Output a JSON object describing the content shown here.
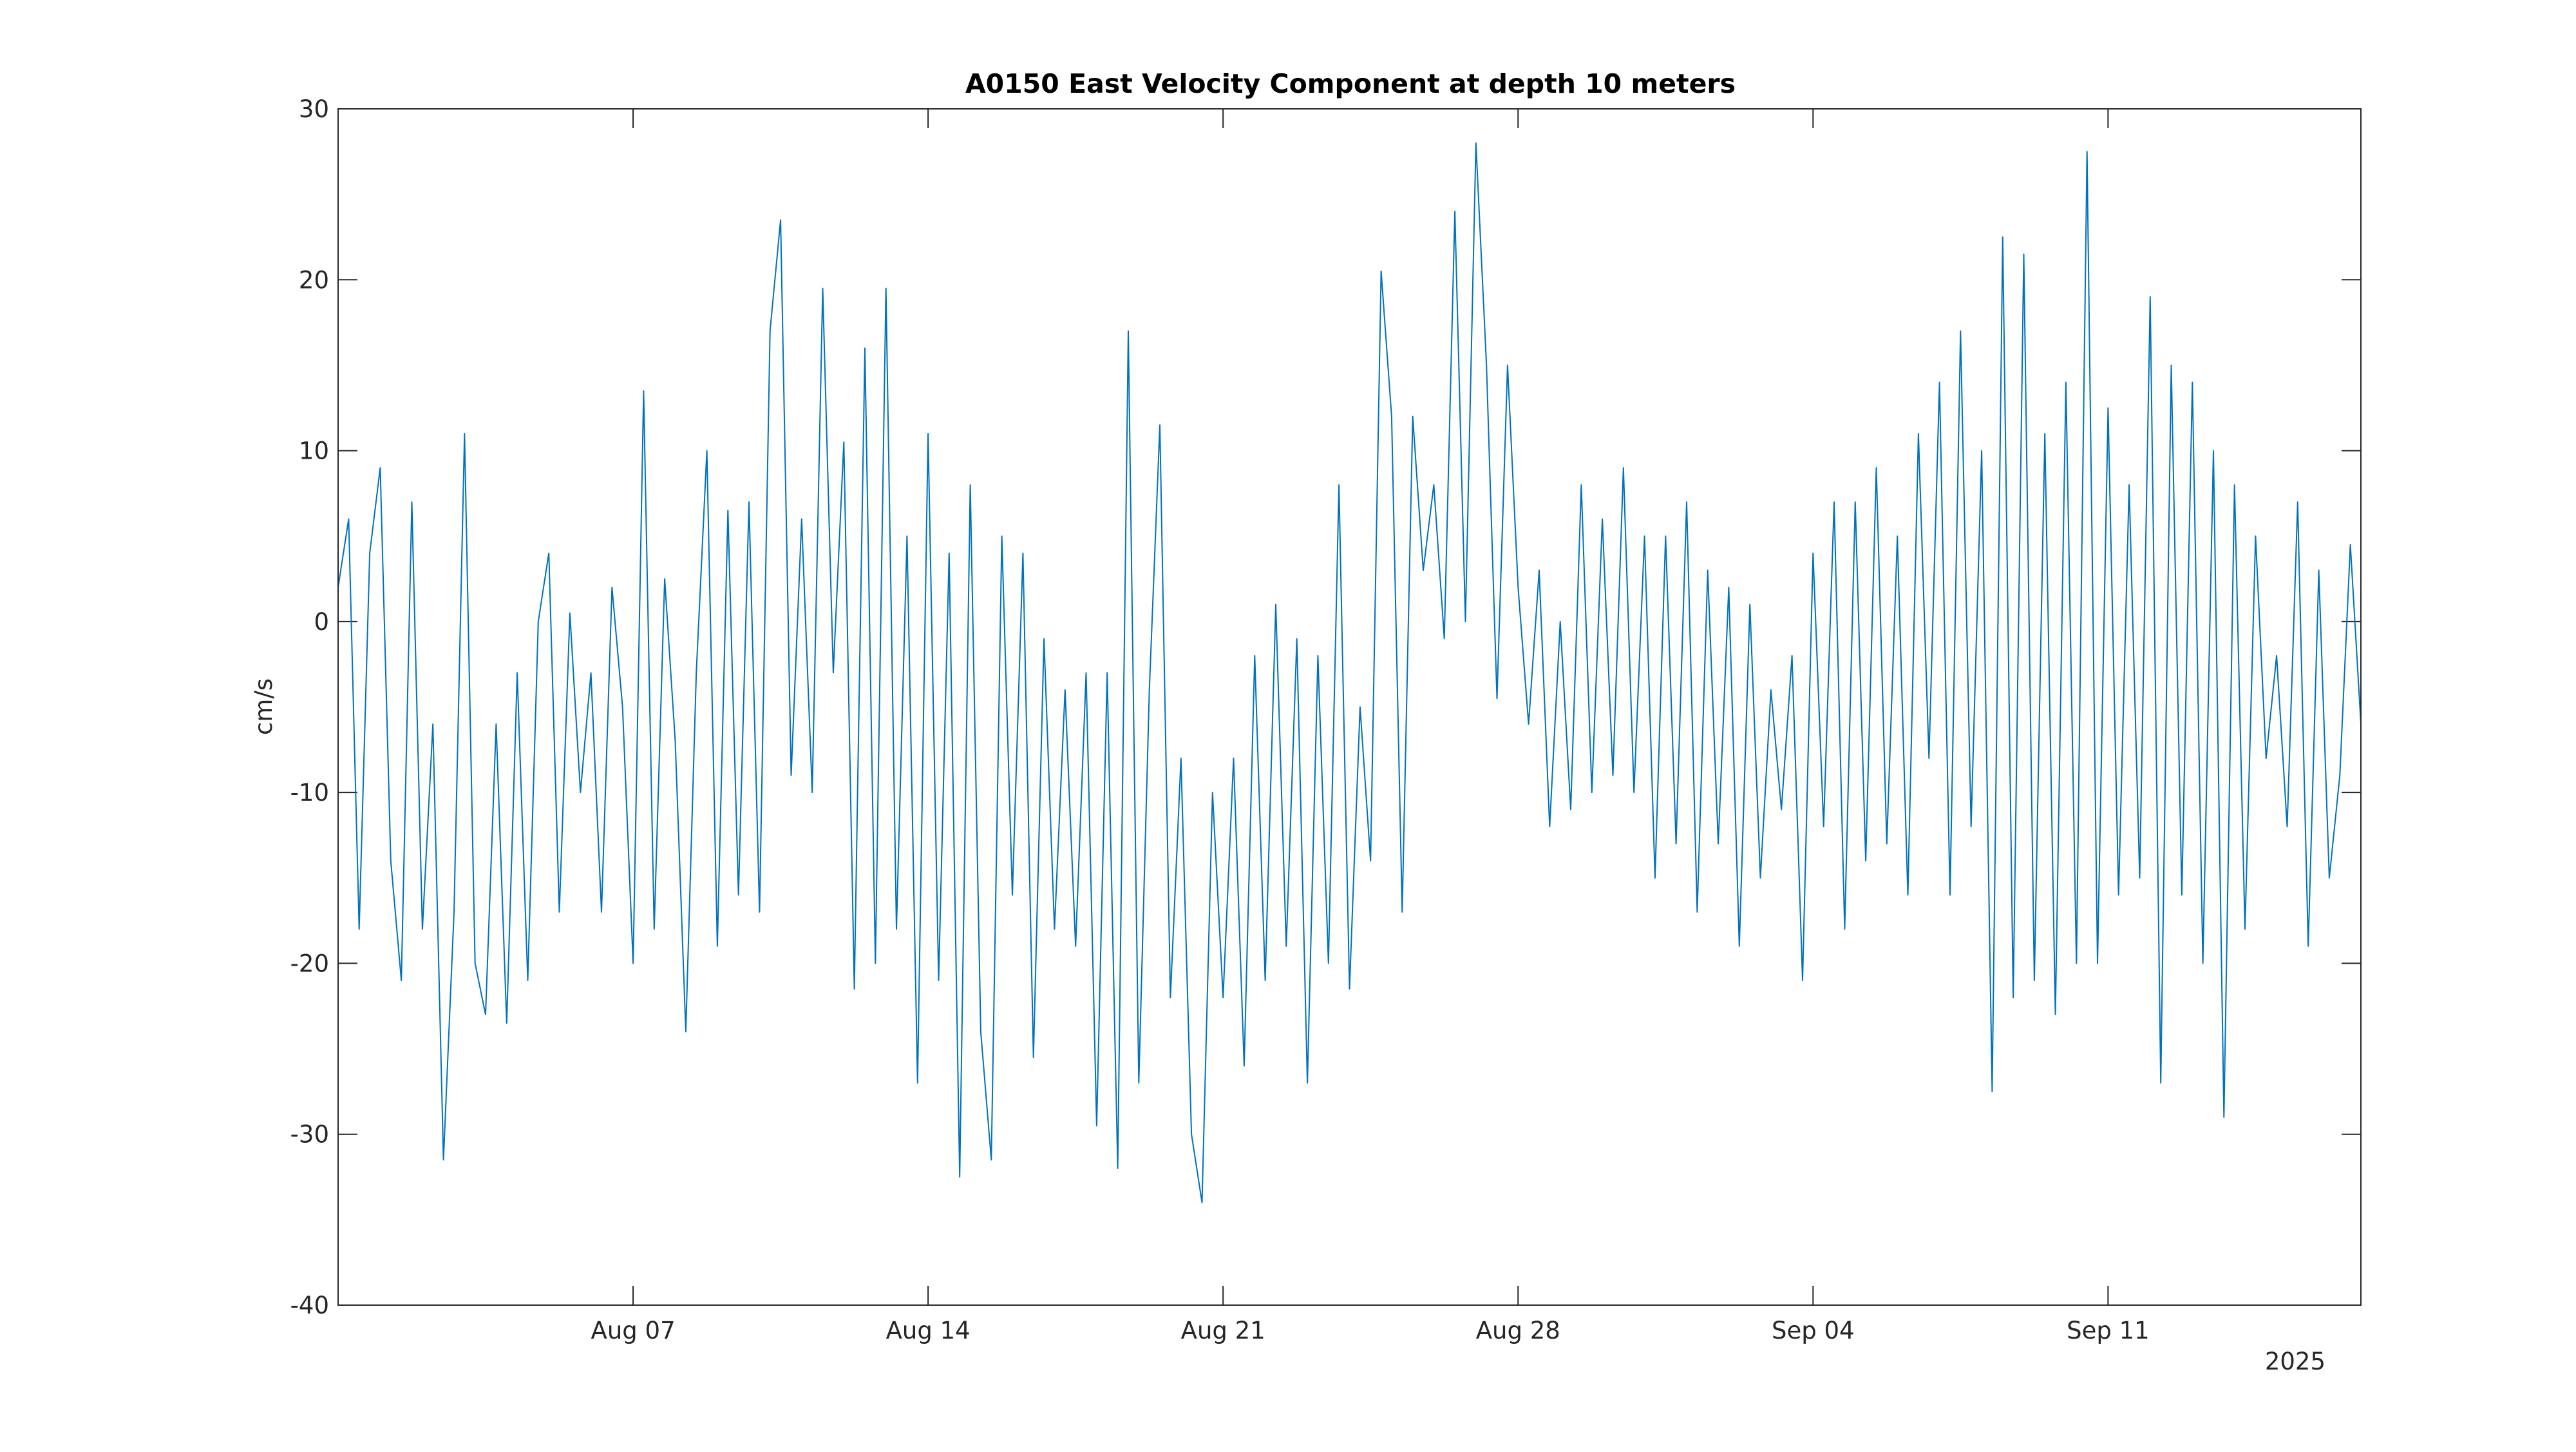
{
  "chart_data": {
    "type": "line",
    "title": "A0150 East Velocity Component at depth 10 meters",
    "xlabel": "",
    "ylabel": "cm/s",
    "x_year_label": "2025",
    "x_range": [
      "2025-07-31",
      "2025-09-17"
    ],
    "x_ticks": [
      {
        "date": "2025-08-07",
        "label": "Aug 07"
      },
      {
        "date": "2025-08-14",
        "label": "Aug 14"
      },
      {
        "date": "2025-08-21",
        "label": "Aug 21"
      },
      {
        "date": "2025-08-28",
        "label": "Aug 28"
      },
      {
        "date": "2025-09-04",
        "label": "Sep 04"
      },
      {
        "date": "2025-09-11",
        "label": "Sep 11"
      }
    ],
    "ylim": [
      -40,
      30
    ],
    "y_ticks": [
      30,
      20,
      10,
      0,
      -10,
      -20,
      -30,
      -40
    ],
    "grid": false,
    "line_color": "#0072BD",
    "series": [
      {
        "values": [
          [
            "2025-07-31T00:00",
            2
          ],
          [
            "2025-07-31T06:00",
            6
          ],
          [
            "2025-07-31T12:00",
            -18
          ],
          [
            "2025-07-31T18:00",
            4
          ],
          [
            "2025-08-01T00:00",
            9
          ],
          [
            "2025-08-01T06:00",
            -14
          ],
          [
            "2025-08-01T12:00",
            -21
          ],
          [
            "2025-08-01T18:00",
            7
          ],
          [
            "2025-08-02T00:00",
            -18
          ],
          [
            "2025-08-02T06:00",
            -6
          ],
          [
            "2025-08-02T12:00",
            -31.5
          ],
          [
            "2025-08-02T18:00",
            -17
          ],
          [
            "2025-08-03T00:00",
            11
          ],
          [
            "2025-08-03T06:00",
            -20
          ],
          [
            "2025-08-03T12:00",
            -23
          ],
          [
            "2025-08-03T18:00",
            -6
          ],
          [
            "2025-08-04T00:00",
            -23.5
          ],
          [
            "2025-08-04T06:00",
            -3
          ],
          [
            "2025-08-04T12:00",
            -21
          ],
          [
            "2025-08-04T18:00",
            0
          ],
          [
            "2025-08-05T00:00",
            4
          ],
          [
            "2025-08-05T06:00",
            -17
          ],
          [
            "2025-08-05T12:00",
            0.5
          ],
          [
            "2025-08-05T18:00",
            -10
          ],
          [
            "2025-08-06T00:00",
            -3
          ],
          [
            "2025-08-06T06:00",
            -17
          ],
          [
            "2025-08-06T12:00",
            2
          ],
          [
            "2025-08-06T18:00",
            -5
          ],
          [
            "2025-08-07T00:00",
            -20
          ],
          [
            "2025-08-07T06:00",
            13.5
          ],
          [
            "2025-08-07T12:00",
            -18
          ],
          [
            "2025-08-07T18:00",
            2.5
          ],
          [
            "2025-08-08T00:00",
            -7
          ],
          [
            "2025-08-08T06:00",
            -24
          ],
          [
            "2025-08-08T12:00",
            -3
          ],
          [
            "2025-08-08T18:00",
            10
          ],
          [
            "2025-08-09T00:00",
            -19
          ],
          [
            "2025-08-09T06:00",
            6.5
          ],
          [
            "2025-08-09T12:00",
            -16
          ],
          [
            "2025-08-09T18:00",
            7
          ],
          [
            "2025-08-10T00:00",
            -17
          ],
          [
            "2025-08-10T06:00",
            17
          ],
          [
            "2025-08-10T12:00",
            23.5
          ],
          [
            "2025-08-10T18:00",
            -9
          ],
          [
            "2025-08-11T00:00",
            6
          ],
          [
            "2025-08-11T06:00",
            -10
          ],
          [
            "2025-08-11T12:00",
            19.5
          ],
          [
            "2025-08-11T18:00",
            -3
          ],
          [
            "2025-08-12T00:00",
            10.5
          ],
          [
            "2025-08-12T06:00",
            -21.5
          ],
          [
            "2025-08-12T12:00",
            16
          ],
          [
            "2025-08-12T18:00",
            -20
          ],
          [
            "2025-08-13T00:00",
            19.5
          ],
          [
            "2025-08-13T06:00",
            -18
          ],
          [
            "2025-08-13T12:00",
            5
          ],
          [
            "2025-08-13T18:00",
            -27
          ],
          [
            "2025-08-14T00:00",
            11
          ],
          [
            "2025-08-14T06:00",
            -21
          ],
          [
            "2025-08-14T12:00",
            4
          ],
          [
            "2025-08-14T18:00",
            -32.5
          ],
          [
            "2025-08-15T00:00",
            8
          ],
          [
            "2025-08-15T06:00",
            -24
          ],
          [
            "2025-08-15T12:00",
            -31.5
          ],
          [
            "2025-08-15T18:00",
            5
          ],
          [
            "2025-08-16T00:00",
            -16
          ],
          [
            "2025-08-16T06:00",
            4
          ],
          [
            "2025-08-16T12:00",
            -25.5
          ],
          [
            "2025-08-16T18:00",
            -1
          ],
          [
            "2025-08-17T00:00",
            -18
          ],
          [
            "2025-08-17T06:00",
            -4
          ],
          [
            "2025-08-17T12:00",
            -19
          ],
          [
            "2025-08-17T18:00",
            -3
          ],
          [
            "2025-08-18T00:00",
            -29.5
          ],
          [
            "2025-08-18T06:00",
            -3
          ],
          [
            "2025-08-18T12:00",
            -32
          ],
          [
            "2025-08-18T18:00",
            17
          ],
          [
            "2025-08-19T00:00",
            -27
          ],
          [
            "2025-08-19T06:00",
            -4
          ],
          [
            "2025-08-19T12:00",
            11.5
          ],
          [
            "2025-08-19T18:00",
            -22
          ],
          [
            "2025-08-20T00:00",
            -8
          ],
          [
            "2025-08-20T06:00",
            -30
          ],
          [
            "2025-08-20T12:00",
            -34
          ],
          [
            "2025-08-20T18:00",
            -10
          ],
          [
            "2025-08-21T00:00",
            -22
          ],
          [
            "2025-08-21T06:00",
            -8
          ],
          [
            "2025-08-21T12:00",
            -26
          ],
          [
            "2025-08-21T18:00",
            -2
          ],
          [
            "2025-08-22T00:00",
            -21
          ],
          [
            "2025-08-22T06:00",
            1
          ],
          [
            "2025-08-22T12:00",
            -19
          ],
          [
            "2025-08-22T18:00",
            -1
          ],
          [
            "2025-08-23T00:00",
            -27
          ],
          [
            "2025-08-23T06:00",
            -2
          ],
          [
            "2025-08-23T12:00",
            -20
          ],
          [
            "2025-08-23T18:00",
            8
          ],
          [
            "2025-08-24T00:00",
            -21.5
          ],
          [
            "2025-08-24T06:00",
            -5
          ],
          [
            "2025-08-24T12:00",
            -14
          ],
          [
            "2025-08-24T18:00",
            20.5
          ],
          [
            "2025-08-25T00:00",
            12
          ],
          [
            "2025-08-25T06:00",
            -17
          ],
          [
            "2025-08-25T12:00",
            12
          ],
          [
            "2025-08-25T18:00",
            3
          ],
          [
            "2025-08-26T00:00",
            8
          ],
          [
            "2025-08-26T06:00",
            -1
          ],
          [
            "2025-08-26T12:00",
            24
          ],
          [
            "2025-08-26T18:00",
            0
          ],
          [
            "2025-08-27T00:00",
            28
          ],
          [
            "2025-08-27T06:00",
            15
          ],
          [
            "2025-08-27T12:00",
            -4.5
          ],
          [
            "2025-08-27T18:00",
            15
          ],
          [
            "2025-08-28T00:00",
            2
          ],
          [
            "2025-08-28T06:00",
            -6
          ],
          [
            "2025-08-28T12:00",
            3
          ],
          [
            "2025-08-28T18:00",
            -12
          ],
          [
            "2025-08-29T00:00",
            0
          ],
          [
            "2025-08-29T06:00",
            -11
          ],
          [
            "2025-08-29T12:00",
            8
          ],
          [
            "2025-08-29T18:00",
            -10
          ],
          [
            "2025-08-30T00:00",
            6
          ],
          [
            "2025-08-30T06:00",
            -9
          ],
          [
            "2025-08-30T12:00",
            9
          ],
          [
            "2025-08-30T18:00",
            -10
          ],
          [
            "2025-08-31T00:00",
            5
          ],
          [
            "2025-08-31T06:00",
            -15
          ],
          [
            "2025-08-31T12:00",
            5
          ],
          [
            "2025-08-31T18:00",
            -13
          ],
          [
            "2025-09-01T00:00",
            7
          ],
          [
            "2025-09-01T06:00",
            -17
          ],
          [
            "2025-09-01T12:00",
            3
          ],
          [
            "2025-09-01T18:00",
            -13
          ],
          [
            "2025-09-02T00:00",
            2
          ],
          [
            "2025-09-02T06:00",
            -19
          ],
          [
            "2025-09-02T12:00",
            1
          ],
          [
            "2025-09-02T18:00",
            -15
          ],
          [
            "2025-09-03T00:00",
            -4
          ],
          [
            "2025-09-03T06:00",
            -11
          ],
          [
            "2025-09-03T12:00",
            -2
          ],
          [
            "2025-09-03T18:00",
            -21
          ],
          [
            "2025-09-04T00:00",
            4
          ],
          [
            "2025-09-04T06:00",
            -12
          ],
          [
            "2025-09-04T12:00",
            7
          ],
          [
            "2025-09-04T18:00",
            -18
          ],
          [
            "2025-09-05T00:00",
            7
          ],
          [
            "2025-09-05T06:00",
            -14
          ],
          [
            "2025-09-05T12:00",
            9
          ],
          [
            "2025-09-05T18:00",
            -13
          ],
          [
            "2025-09-06T00:00",
            5
          ],
          [
            "2025-09-06T06:00",
            -16
          ],
          [
            "2025-09-06T12:00",
            11
          ],
          [
            "2025-09-06T18:00",
            -8
          ],
          [
            "2025-09-07T00:00",
            14
          ],
          [
            "2025-09-07T06:00",
            -16
          ],
          [
            "2025-09-07T12:00",
            17
          ],
          [
            "2025-09-07T18:00",
            -12
          ],
          [
            "2025-09-08T00:00",
            10
          ],
          [
            "2025-09-08T06:00",
            -27.5
          ],
          [
            "2025-09-08T12:00",
            22.5
          ],
          [
            "2025-09-08T18:00",
            -22
          ],
          [
            "2025-09-09T00:00",
            21.5
          ],
          [
            "2025-09-09T06:00",
            -21
          ],
          [
            "2025-09-09T12:00",
            11
          ],
          [
            "2025-09-09T18:00",
            -23
          ],
          [
            "2025-09-10T00:00",
            14
          ],
          [
            "2025-09-10T06:00",
            -20
          ],
          [
            "2025-09-10T12:00",
            27.5
          ],
          [
            "2025-09-10T18:00",
            -20
          ],
          [
            "2025-09-11T00:00",
            12.5
          ],
          [
            "2025-09-11T06:00",
            -16
          ],
          [
            "2025-09-11T12:00",
            8
          ],
          [
            "2025-09-11T18:00",
            -15
          ],
          [
            "2025-09-12T00:00",
            19
          ],
          [
            "2025-09-12T06:00",
            -27
          ],
          [
            "2025-09-12T12:00",
            15
          ],
          [
            "2025-09-12T18:00",
            -16
          ],
          [
            "2025-09-13T00:00",
            14
          ],
          [
            "2025-09-13T06:00",
            -20
          ],
          [
            "2025-09-13T12:00",
            10
          ],
          [
            "2025-09-13T18:00",
            -29
          ],
          [
            "2025-09-14T00:00",
            8
          ],
          [
            "2025-09-14T06:00",
            -18
          ],
          [
            "2025-09-14T12:00",
            5
          ],
          [
            "2025-09-14T18:00",
            -8
          ],
          [
            "2025-09-15T00:00",
            -2
          ],
          [
            "2025-09-15T06:00",
            -12
          ],
          [
            "2025-09-15T12:00",
            7
          ],
          [
            "2025-09-15T18:00",
            -19
          ],
          [
            "2025-09-16T00:00",
            3
          ],
          [
            "2025-09-16T06:00",
            -15
          ],
          [
            "2025-09-16T12:00",
            -9
          ],
          [
            "2025-09-16T18:00",
            4.5
          ],
          [
            "2025-09-17T00:00",
            -6
          ]
        ]
      }
    ]
  }
}
